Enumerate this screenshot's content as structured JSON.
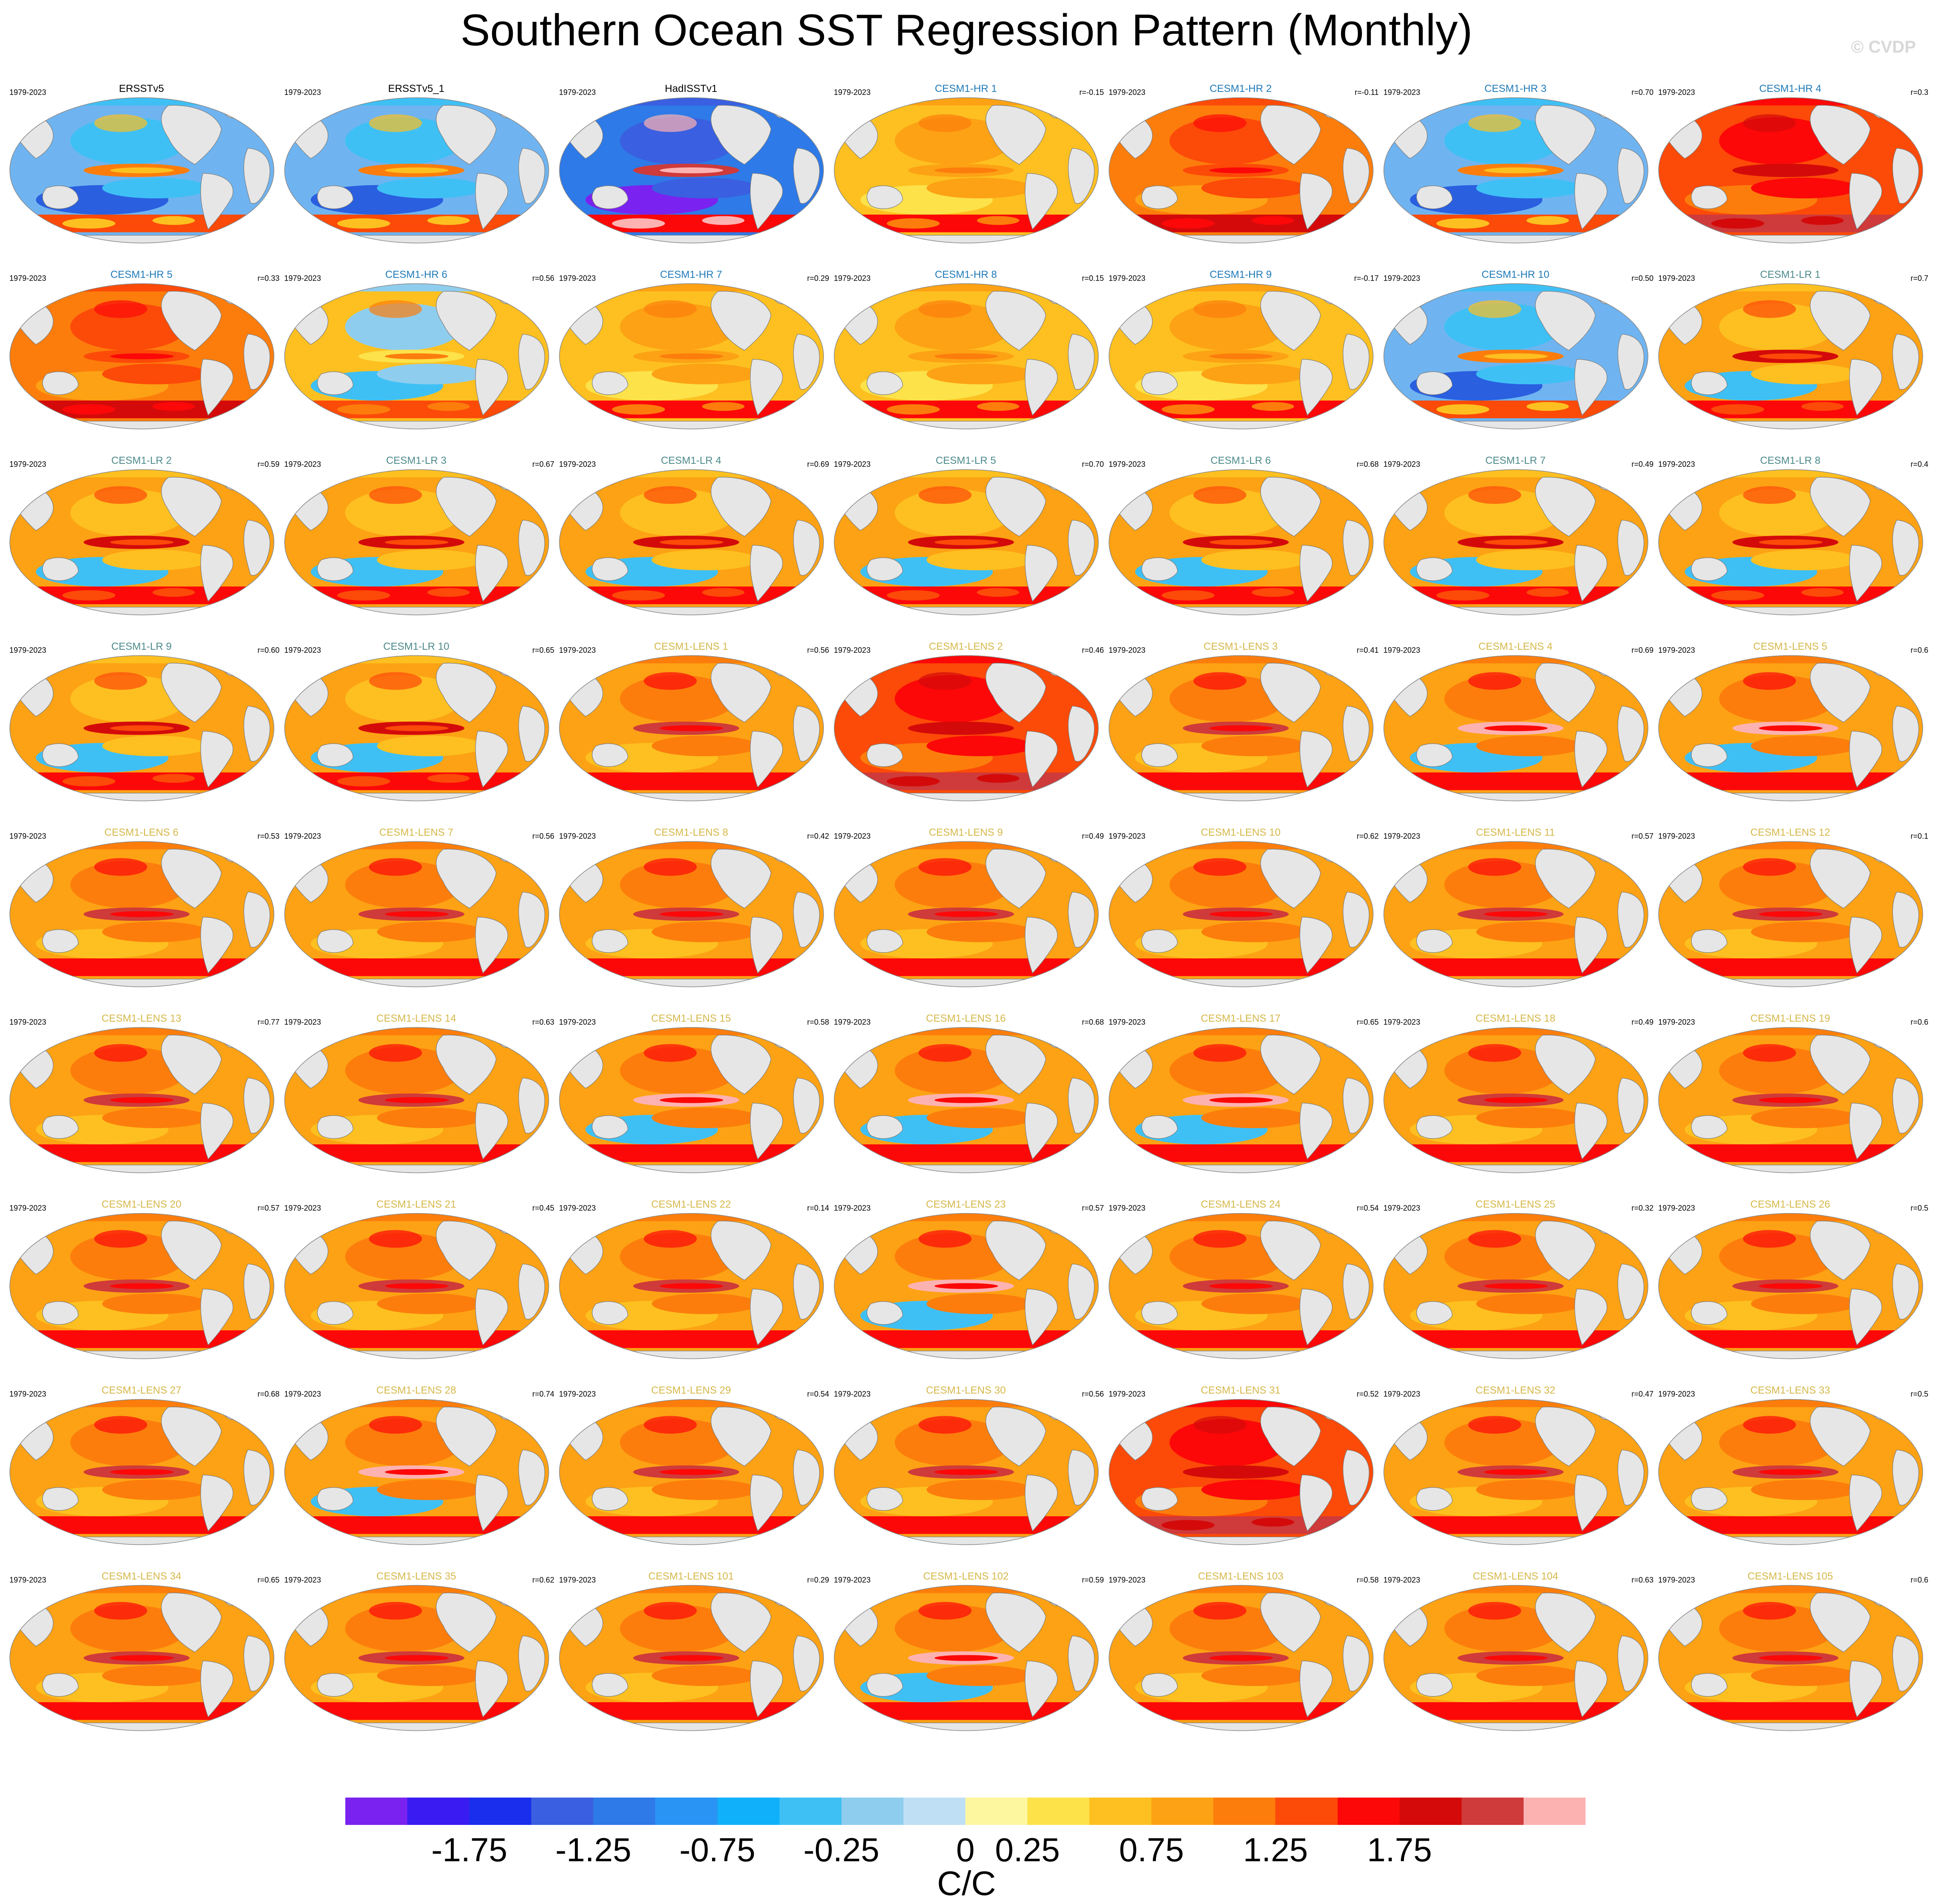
{
  "title": "Southern Ocean SST Regression Pattern (Monthly)",
  "watermark": "© CVDP",
  "period": "1979-2023",
  "colors": {
    "land": "#e6e6e6",
    "obs_title": "#000000",
    "hr_title": "#1f7ab8",
    "lr_title": "#4d8a8a",
    "lens_title": "#d6b84a"
  },
  "colorbar": {
    "colors": [
      "#7a22ef",
      "#3a1cf2",
      "#1a2eed",
      "#3a5fe0",
      "#2e7ae8",
      "#2a94f5",
      "#10b0fa",
      "#3fc0f5",
      "#8fcdee",
      "#bfe0f4",
      "#fdf7a0",
      "#fde24a",
      "#fdc020",
      "#fda214",
      "#fc7d0c",
      "#fc4a08",
      "#fc0808",
      "#d40a0a",
      "#cf3a3a",
      "#fdb2b2"
    ],
    "tick_labels": [
      "-1.75",
      "-1.25",
      "-0.75",
      "-0.25",
      "0",
      "0.25",
      "0.75",
      "1.25",
      "1.75"
    ],
    "units": "C/C"
  },
  "panels": [
    {
      "name": "ERSSTv5",
      "group": "obs",
      "corr": "",
      "pattern": "neg"
    },
    {
      "name": "ERSSTv5_1",
      "group": "obs",
      "corr": "",
      "pattern": "neg"
    },
    {
      "name": "HadISSTv1",
      "group": "obs",
      "corr": "",
      "pattern": "negstrong"
    },
    {
      "name": "CESM1-HR 1",
      "group": "hr",
      "corr": "r=-0.15",
      "pattern": "mild"
    },
    {
      "name": "CESM1-HR 2",
      "group": "hr",
      "corr": "r=-0.11",
      "pattern": "warm"
    },
    {
      "name": "CESM1-HR 3",
      "group": "hr",
      "corr": "r=0.70",
      "pattern": "neg"
    },
    {
      "name": "CESM1-HR 4",
      "group": "hr",
      "corr": "r=0.3",
      "pattern": "hot"
    },
    {
      "name": "CESM1-HR 5",
      "group": "hr",
      "corr": "r=0.33",
      "pattern": "warm"
    },
    {
      "name": "CESM1-HR 6",
      "group": "hr",
      "corr": "r=0.56",
      "pattern": "mixed"
    },
    {
      "name": "CESM1-HR 7",
      "group": "hr",
      "corr": "r=0.29",
      "pattern": "mild"
    },
    {
      "name": "CESM1-HR 8",
      "group": "hr",
      "corr": "r=0.15",
      "pattern": "mild"
    },
    {
      "name": "CESM1-HR 9",
      "group": "hr",
      "corr": "r=-0.17",
      "pattern": "mild"
    },
    {
      "name": "CESM1-HR 10",
      "group": "hr",
      "corr": "r=0.50",
      "pattern": "neg"
    },
    {
      "name": "CESM1-LR 1",
      "group": "lr",
      "corr": "r=0.7",
      "pattern": "lr"
    },
    {
      "name": "CESM1-LR 2",
      "group": "lr",
      "corr": "r=0.59",
      "pattern": "lr"
    },
    {
      "name": "CESM1-LR 3",
      "group": "lr",
      "corr": "r=0.67",
      "pattern": "lr"
    },
    {
      "name": "CESM1-LR 4",
      "group": "lr",
      "corr": "r=0.69",
      "pattern": "lr"
    },
    {
      "name": "CESM1-LR 5",
      "group": "lr",
      "corr": "r=0.70",
      "pattern": "lr"
    },
    {
      "name": "CESM1-LR 6",
      "group": "lr",
      "corr": "r=0.68",
      "pattern": "lr"
    },
    {
      "name": "CESM1-LR 7",
      "group": "lr",
      "corr": "r=0.49",
      "pattern": "lr"
    },
    {
      "name": "CESM1-LR 8",
      "group": "lr",
      "corr": "r=0.4",
      "pattern": "lr"
    },
    {
      "name": "CESM1-LR 9",
      "group": "lr",
      "corr": "r=0.60",
      "pattern": "lr"
    },
    {
      "name": "CESM1-LR 10",
      "group": "lr",
      "corr": "r=0.65",
      "pattern": "lr"
    },
    {
      "name": "CESM1-LENS 1",
      "group": "lens",
      "corr": "r=0.56",
      "pattern": "lens"
    },
    {
      "name": "CESM1-LENS 2",
      "group": "lens",
      "corr": "r=0.46",
      "pattern": "hot"
    },
    {
      "name": "CESM1-LENS 3",
      "group": "lens",
      "corr": "r=0.41",
      "pattern": "lens"
    },
    {
      "name": "CESM1-LENS 4",
      "group": "lens",
      "corr": "r=0.69",
      "pattern": "lensneg"
    },
    {
      "name": "CESM1-LENS 5",
      "group": "lens",
      "corr": "r=0.6",
      "pattern": "lensneg"
    },
    {
      "name": "CESM1-LENS 6",
      "group": "lens",
      "corr": "r=0.53",
      "pattern": "lens"
    },
    {
      "name": "CESM1-LENS 7",
      "group": "lens",
      "corr": "r=0.56",
      "pattern": "lens"
    },
    {
      "name": "CESM1-LENS 8",
      "group": "lens",
      "corr": "r=0.42",
      "pattern": "lens"
    },
    {
      "name": "CESM1-LENS 9",
      "group": "lens",
      "corr": "r=0.49",
      "pattern": "lens"
    },
    {
      "name": "CESM1-LENS 10",
      "group": "lens",
      "corr": "r=0.62",
      "pattern": "lens"
    },
    {
      "name": "CESM1-LENS 11",
      "group": "lens",
      "corr": "r=0.57",
      "pattern": "lens"
    },
    {
      "name": "CESM1-LENS 12",
      "group": "lens",
      "corr": "r=0.1",
      "pattern": "lens"
    },
    {
      "name": "CESM1-LENS 13",
      "group": "lens",
      "corr": "r=0.77",
      "pattern": "lens"
    },
    {
      "name": "CESM1-LENS 14",
      "group": "lens",
      "corr": "r=0.63",
      "pattern": "lens"
    },
    {
      "name": "CESM1-LENS 15",
      "group": "lens",
      "corr": "r=0.58",
      "pattern": "lensneg"
    },
    {
      "name": "CESM1-LENS 16",
      "group": "lens",
      "corr": "r=0.68",
      "pattern": "lensneg"
    },
    {
      "name": "CESM1-LENS 17",
      "group": "lens",
      "corr": "r=0.65",
      "pattern": "lensneg"
    },
    {
      "name": "CESM1-LENS 18",
      "group": "lens",
      "corr": "r=0.49",
      "pattern": "lens"
    },
    {
      "name": "CESM1-LENS 19",
      "group": "lens",
      "corr": "r=0.6",
      "pattern": "lens"
    },
    {
      "name": "CESM1-LENS 20",
      "group": "lens",
      "corr": "r=0.57",
      "pattern": "lens"
    },
    {
      "name": "CESM1-LENS 21",
      "group": "lens",
      "corr": "r=0.45",
      "pattern": "lens"
    },
    {
      "name": "CESM1-LENS 22",
      "group": "lens",
      "corr": "r=0.14",
      "pattern": "lens"
    },
    {
      "name": "CESM1-LENS 23",
      "group": "lens",
      "corr": "r=0.57",
      "pattern": "lensneg"
    },
    {
      "name": "CESM1-LENS 24",
      "group": "lens",
      "corr": "r=0.54",
      "pattern": "lens"
    },
    {
      "name": "CESM1-LENS 25",
      "group": "lens",
      "corr": "r=0.32",
      "pattern": "lens"
    },
    {
      "name": "CESM1-LENS 26",
      "group": "lens",
      "corr": "r=0.5",
      "pattern": "lens"
    },
    {
      "name": "CESM1-LENS 27",
      "group": "lens",
      "corr": "r=0.68",
      "pattern": "lens"
    },
    {
      "name": "CESM1-LENS 28",
      "group": "lens",
      "corr": "r=0.74",
      "pattern": "lensneg"
    },
    {
      "name": "CESM1-LENS 29",
      "group": "lens",
      "corr": "r=0.54",
      "pattern": "lens"
    },
    {
      "name": "CESM1-LENS 30",
      "group": "lens",
      "corr": "r=0.56",
      "pattern": "lens"
    },
    {
      "name": "CESM1-LENS 31",
      "group": "lens",
      "corr": "r=0.52",
      "pattern": "hot"
    },
    {
      "name": "CESM1-LENS 32",
      "group": "lens",
      "corr": "r=0.47",
      "pattern": "lens"
    },
    {
      "name": "CESM1-LENS 33",
      "group": "lens",
      "corr": "r=0.5",
      "pattern": "lens"
    },
    {
      "name": "CESM1-LENS 34",
      "group": "lens",
      "corr": "r=0.65",
      "pattern": "lens"
    },
    {
      "name": "CESM1-LENS 35",
      "group": "lens",
      "corr": "r=0.62",
      "pattern": "lens"
    },
    {
      "name": "CESM1-LENS 101",
      "group": "lens",
      "corr": "r=0.29",
      "pattern": "lens"
    },
    {
      "name": "CESM1-LENS 102",
      "group": "lens",
      "corr": "r=0.59",
      "pattern": "lensneg"
    },
    {
      "name": "CESM1-LENS 103",
      "group": "lens",
      "corr": "r=0.58",
      "pattern": "lens"
    },
    {
      "name": "CESM1-LENS 104",
      "group": "lens",
      "corr": "r=0.63",
      "pattern": "lens"
    },
    {
      "name": "CESM1-LENS 105",
      "group": "lens",
      "corr": "r=0.6",
      "pattern": "lens"
    }
  ]
}
